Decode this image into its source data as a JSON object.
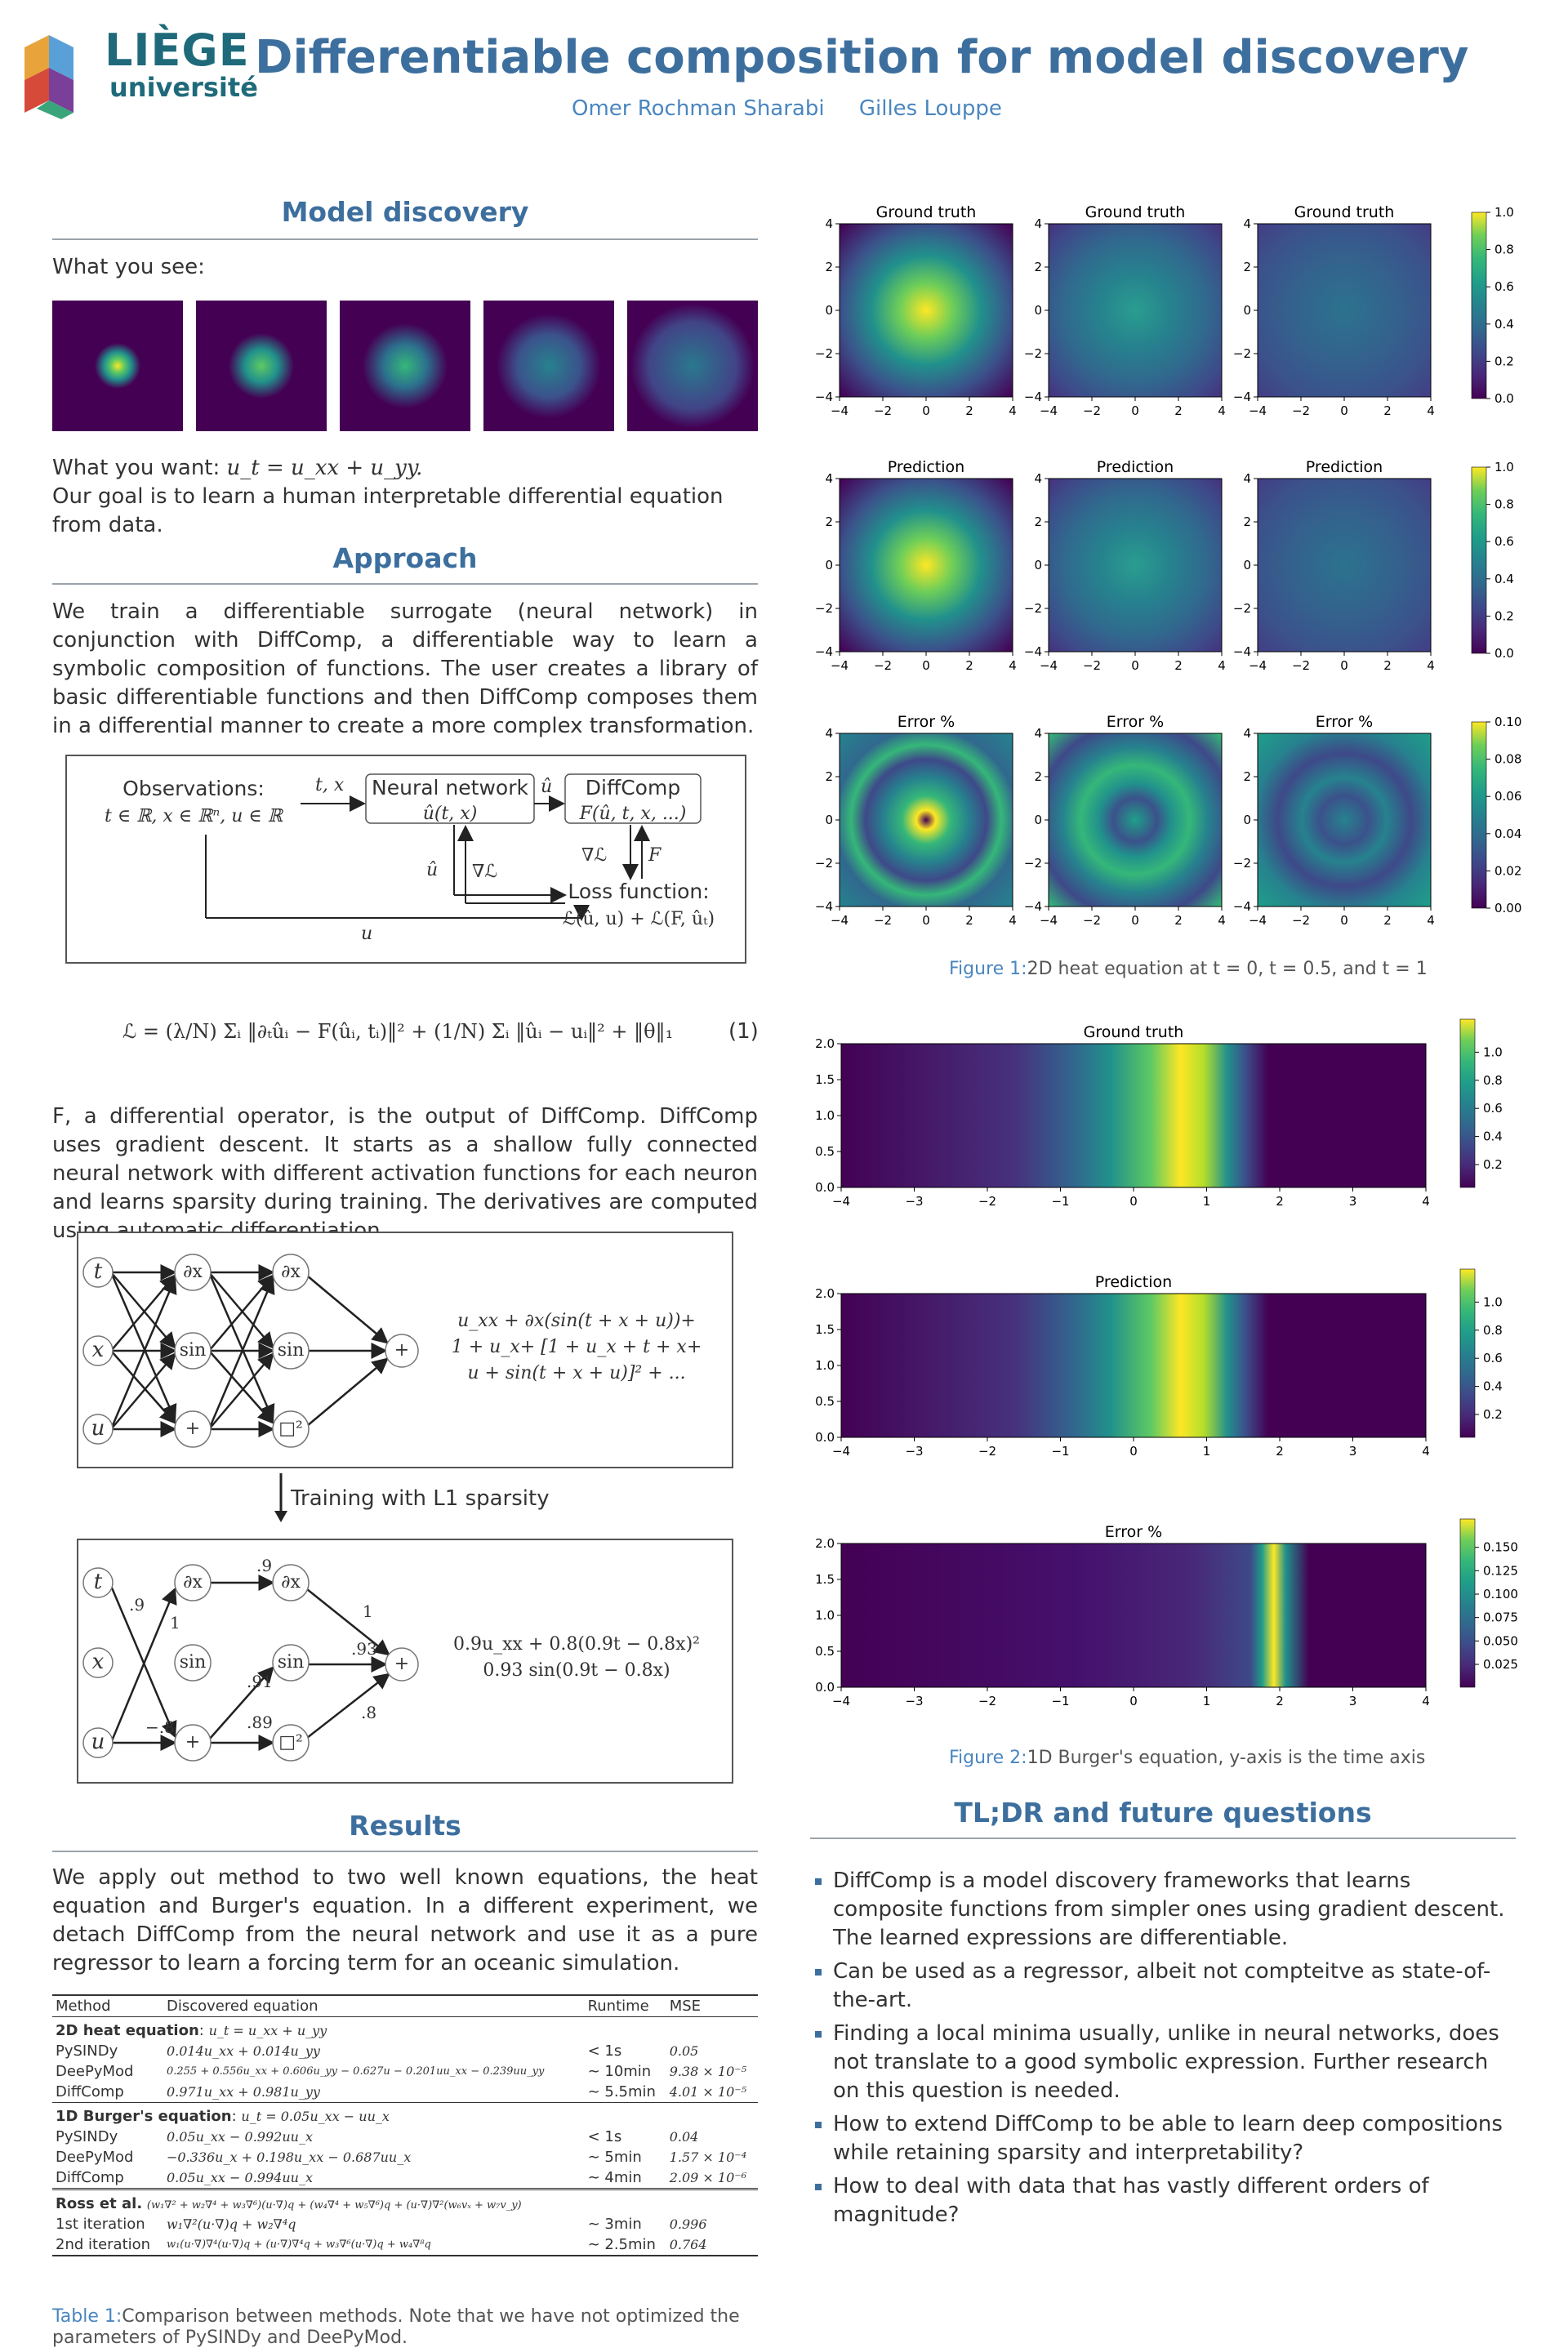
{
  "header": {
    "logo_text_1": "LIÈGE",
    "logo_text_2": "université",
    "title": "Differentiable composition for model discovery",
    "authors": [
      "Omer Rochman Sharabi",
      "Gilles Louppe"
    ]
  },
  "model_discovery": {
    "heading": "Model discovery",
    "what_you_see": "What you see:",
    "what_you_want_prefix": "What you want: ",
    "what_you_want_eq": "u_t = u_xx + u_yy.",
    "goal": "Our goal is to learn a human interpretable differential equation from data."
  },
  "approach": {
    "heading": "Approach",
    "paragraph": "We train a differentiable surrogate (neural network) in conjunction with DiffComp, a differentiable way to learn a symbolic composition of functions. The user creates a library of basic differentiable functions and then DiffComp composes them in a differential manner to create a more complex transformation.",
    "diagram": {
      "observations": "Observations:",
      "observations_domain": "t ∈ ℝ, x ∈ ℝⁿ, u ∈ ℝ",
      "arrow_tx": "t, x",
      "nn_label": "Neural network",
      "nn_fn": "û(t, x)",
      "uhat": "û",
      "diffcomp_label": "DiffComp",
      "diffcomp_fn": "F(û, t, x, ...)",
      "grad_l": "∇ℒ",
      "F": "F",
      "loss_label": "Loss function:",
      "loss_fn": "ℒ(û, u) + ℒ(F, ûₜ)",
      "u": "u"
    },
    "equation": "ℒ = (λ/N) Σᵢ ‖∂ₜûᵢ − F(ûᵢ, tᵢ)‖² + (1/N) Σᵢ ‖ûᵢ − uᵢ‖² + ‖θ‖₁",
    "equation_number": "(1)",
    "paragraph2": "F, a differential operator, is the output of DiffComp. DiffComp uses gradient descent. It starts as a shallow fully connected neural network with different activation functions for each neuron and learns sparsity during training. The derivatives are computed using automatic differentiation.",
    "net1": {
      "inputs": [
        "t",
        "x",
        "u"
      ],
      "layer1": [
        "∂x",
        "sin",
        "+"
      ],
      "layer2": [
        "∂x",
        "sin",
        "□²"
      ],
      "output": "+",
      "formula": [
        "u_xx + ∂x(sin(t + x + u))+",
        "1 + u_x+ [1 + u_x + t + x+",
        "u + sin(t + x + u)]² + ..."
      ]
    },
    "training_label": "Training with L1 sparsity",
    "net2": {
      "inputs": [
        "t",
        "x",
        "u"
      ],
      "layer1": [
        "∂x",
        "sin",
        "+"
      ],
      "layer2": [
        "∂x",
        "sin",
        "□²"
      ],
      "output": "+",
      "weights": [
        ".9",
        "1",
        "−.8",
        ".9",
        ".91",
        ".89",
        "1",
        ".93",
        ".8"
      ],
      "formula": [
        "0.9u_xx + 0.8(0.9t − 0.8x)²",
        "0.93 sin(0.9t − 0.8x)"
      ]
    }
  },
  "results": {
    "heading": "Results",
    "paragraph": "We apply out method to two well known equations, the heat equation and Burger's equation. In a different experiment, we detach DiffComp from the neural network and use it as a pure regressor to learn a forcing term for an oceanic simulation.",
    "table": {
      "headers": [
        "Method",
        "Discovered equation",
        "Runtime",
        "MSE"
      ],
      "groups": [
        {
          "title": "2D heat equation",
          "equation": "u_t = u_xx + u_yy",
          "rows": [
            [
              "PySINDy",
              "0.014u_xx + 0.014u_yy",
              "< 1s",
              "0.05"
            ],
            [
              "DeePyMod",
              "0.255 + 0.556u_xx + 0.606u_yy − 0.627u − 0.201uu_xx − 0.239uu_yy",
              "∼ 10min",
              "9.38 × 10⁻⁵"
            ],
            [
              "DiffComp",
              "0.971u_xx + 0.981u_yy",
              "∼ 5.5min",
              "4.01 × 10⁻⁵"
            ]
          ]
        },
        {
          "title": "1D Burger's equation",
          "equation": "u_t = 0.05u_xx − uu_x",
          "rows": [
            [
              "PySINDy",
              "0.05u_xx − 0.992uu_x",
              "< 1s",
              "0.04"
            ],
            [
              "DeePyMod",
              "−0.336u_x + 0.198u_xx − 0.687uu_x",
              "∼ 5min",
              "1.57 × 10⁻⁴"
            ],
            [
              "DiffComp",
              "0.05u_xx − 0.994uu_x",
              "∼ 4min",
              "2.09 × 10⁻⁶"
            ]
          ]
        },
        {
          "title": "Ross et al.",
          "equation": "(w₁∇² + w₂∇⁴ + w₃∇⁶)(u·∇)q + (w₄∇⁴ + w₅∇⁶)q + (u·∇)∇²(w₆vₓ + w₇v_y)",
          "rows": [
            [
              "1st iteration",
              "w₁∇²(u·∇)q + w₂∇⁴q",
              "∼ 3min",
              "0.996"
            ],
            [
              "2nd iteration",
              "w₁(u·∇)∇⁴(u·∇)q + (u·∇)∇⁴q + w₃∇⁶(u·∇)q + w₄∇⁸q",
              "∼ 2.5min",
              "0.764"
            ]
          ]
        }
      ]
    },
    "caption_label": "Table 1:",
    "caption": "Comparison between methods. Note that we have not optimized the parameters of PySINDy and DeePyMod."
  },
  "figure1": {
    "row_titles": [
      "Ground truth",
      "Prediction",
      "Error %"
    ],
    "ticks": [
      "−4",
      "−2",
      "0",
      "2",
      "4"
    ],
    "colorbar_ticks_main": [
      "0.0",
      "0.2",
      "0.4",
      "0.6",
      "0.8",
      "1.0"
    ],
    "colorbar_ticks_error": [
      "0.00",
      "0.02",
      "0.04",
      "0.06",
      "0.08",
      "0.10"
    ],
    "caption_label": "Figure 1:",
    "caption": "2D heat equation at t = 0, t = 0.5, and t = 1"
  },
  "figure2": {
    "titles": [
      "Ground truth",
      "Prediction",
      "Error %"
    ],
    "xticks": [
      "−4",
      "−3",
      "−2",
      "−1",
      "0",
      "1",
      "2",
      "3",
      "4"
    ],
    "yticks": [
      "0.0",
      "0.5",
      "1.0",
      "1.5",
      "2.0"
    ],
    "colorbar_ticks_main": [
      "0.2",
      "0.4",
      "0.6",
      "0.8",
      "1.0"
    ],
    "colorbar_ticks_error": [
      "0.025",
      "0.050",
      "0.075",
      "0.100",
      "0.125",
      "0.150"
    ],
    "caption_label": "Figure 2:",
    "caption": "1D Burger's equation, y-axis is the time axis"
  },
  "tldr": {
    "heading": "TL;DR and future questions",
    "items": [
      "DiffComp is a model discovery frameworks that learns composite functions from simpler ones using gradient descent. The learned expressions are differentiable.",
      "Can be used as a regressor, albeit not compteitve as state-of-the-art.",
      "Finding a local minima usually, unlike in neural networks, does not translate to a good symbolic expression. Further research on this question is needed.",
      "How to extend DiffComp to be able to learn deep compositions while retaining sparsity and interpretability?",
      "How to deal with data that has vastly different orders of magnitude?"
    ]
  },
  "colors": {
    "accent": "#3d6f9e",
    "link": "#4a86c0",
    "viridis_low": "#440154",
    "viridis_high": "#fde725"
  }
}
